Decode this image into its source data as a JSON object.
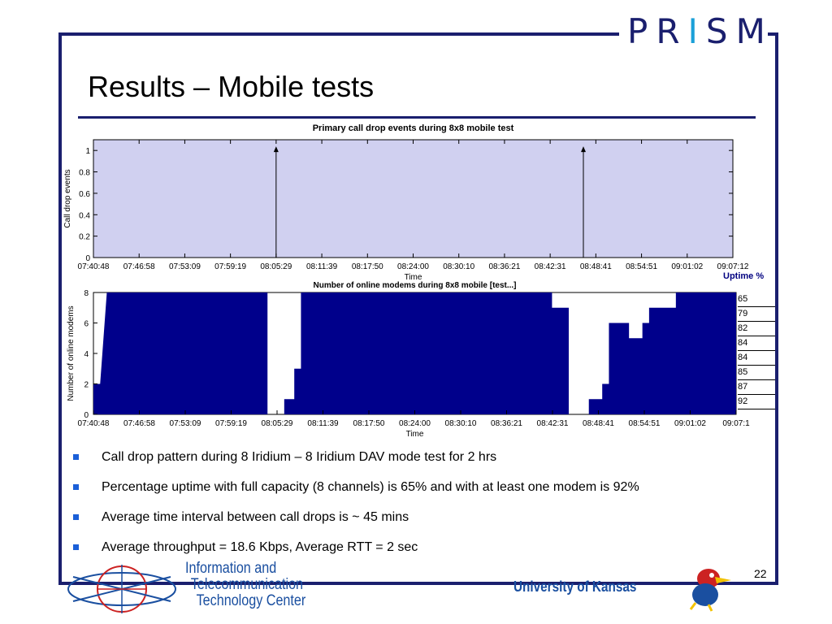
{
  "logo": {
    "text_left": "PR",
    "text_i": "I",
    "text_right": "SM"
  },
  "slide": {
    "title": "Results – Mobile tests",
    "page_number": "22"
  },
  "chart_data": [
    {
      "type": "line",
      "title": "Primary call drop events during 8x8 mobile test",
      "xlabel": "Time",
      "ylabel": "Call drop events",
      "ylim": [
        0,
        1.1
      ],
      "yticks": [
        "0",
        "0.2",
        "0.4",
        "0.6",
        "0.8",
        "1"
      ],
      "xticks": [
        "07:40:48",
        "07:46:58",
        "07:53:09",
        "07:59:19",
        "08:05:29",
        "08:11:39",
        "08:17:50",
        "08:24:00",
        "08:30:10",
        "08:36:21",
        "08:42:31",
        "08:48:41",
        "08:54:51",
        "09:01:02",
        "09:07:12"
      ],
      "events": [
        {
          "x": "08:05:29",
          "y": 1
        },
        {
          "x": "08:47:00",
          "y": 1
        }
      ],
      "grid": true,
      "background": "#d0d0f0"
    },
    {
      "type": "area",
      "title": "Number of online modems during 8x8 mobile [test...]",
      "xlabel": "Time",
      "ylabel": "Number of online modems",
      "ylim": [
        0,
        8
      ],
      "yticks": [
        "0",
        "2",
        "4",
        "6",
        "8"
      ],
      "xticks": [
        "07:40:48",
        "07:46:58",
        "07:53:09",
        "07:59:19",
        "08:05:29",
        "08:11:39",
        "08:17:50",
        "08:24:00",
        "08:30:10",
        "08:36:21",
        "08:42:31",
        "08:48:41",
        "08:54:51",
        "09:01:02",
        "09:07:1"
      ],
      "color": "#00008b",
      "steps_note_unused": "",
      "x": [
        0,
        1,
        1,
        2,
        2,
        26,
        26,
        28.5,
        28.5,
        30,
        30,
        31,
        31,
        68.5,
        68.5,
        71,
        71,
        74,
        74,
        76,
        76,
        77,
        77,
        78,
        78,
        80,
        80,
        82,
        82,
        83,
        83,
        85,
        85,
        87,
        87,
        94,
        94,
        96
      ],
      "y": [
        2,
        2,
        2,
        8,
        8,
        8,
        0,
        0,
        1,
        1,
        3,
        3,
        8,
        8,
        7,
        7,
        0,
        0,
        1,
        1,
        2,
        2,
        6,
        6,
        6,
        6,
        5,
        5,
        6,
        6,
        7,
        7,
        7,
        7,
        8,
        8,
        8,
        8
      ]
    }
  ],
  "uptime": {
    "header": "Uptime %",
    "values": [
      "65",
      "79",
      "82",
      "84",
      "84",
      "85",
      "87",
      "92"
    ]
  },
  "bullets": [
    "Call drop pattern during 8 Iridium – 8 Iridium DAV mode test for 2 hrs",
    "Percentage uptime with full capacity (8 channels) is 65% and with at least one modem is 92%",
    "Average time interval between call drops is ~ 45 mins",
    "Average throughput = 18.6 Kbps, Average RTT = 2 sec"
  ],
  "footer": {
    "ittc_line1": "Information and",
    "ittc_line2": "Telecommunication",
    "ittc_line3": "Technology Center",
    "university": "University of Kansas"
  }
}
